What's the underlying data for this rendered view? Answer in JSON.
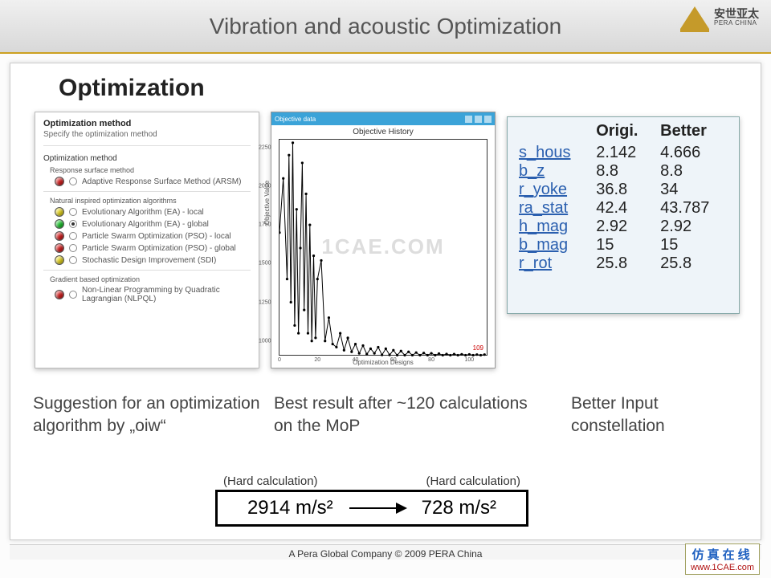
{
  "header": {
    "title": "Vibration and acoustic Optimization",
    "logo_cn": "安世亚太",
    "logo_en": "PERA CHINA"
  },
  "slide_title": "Optimization",
  "opt_panel": {
    "header": "Optimization method",
    "subheader": "Specify the optimization method",
    "section1": "Optimization method",
    "sub_rsm": "Response surface method",
    "sub_nio": "Natural inspired optimization algorithms",
    "sub_grad": "Gradient based optimization",
    "items": [
      {
        "dot": "#d02020",
        "selected": false,
        "label": "Adaptive Response Surface Method (ARSM)"
      },
      {
        "dot": "#e0d020",
        "selected": false,
        "label": "Evolutionary Algorithm (EA) - local"
      },
      {
        "dot": "#20c030",
        "selected": true,
        "label": "Evolutionary Algorithm (EA) - global"
      },
      {
        "dot": "#d02020",
        "selected": false,
        "label": "Particle Swarm Optimization (PSO) - local"
      },
      {
        "dot": "#d02020",
        "selected": false,
        "label": "Particle Swarm Optimization (PSO) - global"
      },
      {
        "dot": "#e0d020",
        "selected": false,
        "label": "Stochastic Design Improvement (SDI)"
      },
      {
        "dot": "#d02020",
        "selected": false,
        "label": "Non-Linear Programming by Quadratic Lagrangian (NLPQL)"
      }
    ]
  },
  "chart": {
    "window_title": "Objective data",
    "subtitle": "Objective History",
    "ylabel": "Objective Value",
    "xlabel": "Optimization Designs",
    "xlim": [
      0,
      110
    ],
    "ylim": [
      900,
      2300
    ],
    "xticks": [
      0,
      20,
      40,
      60,
      80,
      100
    ],
    "yticks": [
      1000,
      1250,
      1500,
      1750,
      2000,
      2250
    ],
    "line_color": "#000000",
    "marker": "circle",
    "watermark": "1CAE.COM",
    "points": [
      [
        0,
        1700
      ],
      [
        2,
        2050
      ],
      [
        4,
        1400
      ],
      [
        5,
        2200
      ],
      [
        6,
        1250
      ],
      [
        7,
        2280
      ],
      [
        8,
        1100
      ],
      [
        9,
        1850
      ],
      [
        10,
        1050
      ],
      [
        11,
        1600
      ],
      [
        12,
        2150
      ],
      [
        13,
        1200
      ],
      [
        14,
        1950
      ],
      [
        15,
        1050
      ],
      [
        16,
        1750
      ],
      [
        17,
        1000
      ],
      [
        18,
        1550
      ],
      [
        19,
        1020
      ],
      [
        20,
        1400
      ],
      [
        22,
        1520
      ],
      [
        24,
        1000
      ],
      [
        26,
        1150
      ],
      [
        28,
        980
      ],
      [
        30,
        960
      ],
      [
        32,
        1050
      ],
      [
        34,
        940
      ],
      [
        36,
        1020
      ],
      [
        38,
        930
      ],
      [
        40,
        980
      ],
      [
        42,
        920
      ],
      [
        44,
        970
      ],
      [
        46,
        915
      ],
      [
        48,
        950
      ],
      [
        50,
        920
      ],
      [
        52,
        960
      ],
      [
        54,
        910
      ],
      [
        56,
        950
      ],
      [
        58,
        910
      ],
      [
        60,
        940
      ],
      [
        62,
        908
      ],
      [
        64,
        935
      ],
      [
        66,
        908
      ],
      [
        68,
        930
      ],
      [
        70,
        908
      ],
      [
        72,
        925
      ],
      [
        74,
        908
      ],
      [
        76,
        922
      ],
      [
        78,
        908
      ],
      [
        80,
        920
      ],
      [
        82,
        908
      ],
      [
        84,
        918
      ],
      [
        86,
        908
      ],
      [
        88,
        916
      ],
      [
        90,
        908
      ],
      [
        92,
        915
      ],
      [
        94,
        908
      ],
      [
        96,
        914
      ],
      [
        98,
        908
      ],
      [
        100,
        913
      ],
      [
        102,
        908
      ],
      [
        104,
        912
      ],
      [
        106,
        908
      ],
      [
        108,
        912
      ]
    ],
    "red_label": "109",
    "red_label_color": "#cc0000"
  },
  "param_table": {
    "col1": "Origi.",
    "col2": "Better",
    "rows": [
      {
        "name": "s_hous",
        "origi": "2.142",
        "better": "4.666"
      },
      {
        "name": "b_z",
        "origi": "8.8",
        "better": "8.8"
      },
      {
        "name": "r_yoke",
        "origi": "36.8",
        "better": "34"
      },
      {
        "name": "ra_stat",
        "origi": "42.4",
        "better": "43.787"
      },
      {
        "name": "h_mag",
        "origi": "2.92",
        "better": "2.92"
      },
      {
        "name": "b_mag",
        "origi": "15",
        "better": "15"
      },
      {
        "name": "r_rot",
        "origi": "25.8",
        "better": "25.8"
      }
    ]
  },
  "captions": {
    "c1": "Suggestion for an optimization algorithm by „oiw“",
    "c2": "Best result after ~120 calculations on the MoP",
    "c3": "Better Input constellation"
  },
  "result": {
    "label_left": "(Hard calculation)",
    "label_right": "(Hard  calculation)",
    "val_left": "2914 m/s²",
    "val_right": "728 m/s²"
  },
  "footer": "A Pera Global Company © 2009 PERA China",
  "bottom_logo": {
    "cn": "仿真在线",
    "url": "www.1CAE.com"
  }
}
